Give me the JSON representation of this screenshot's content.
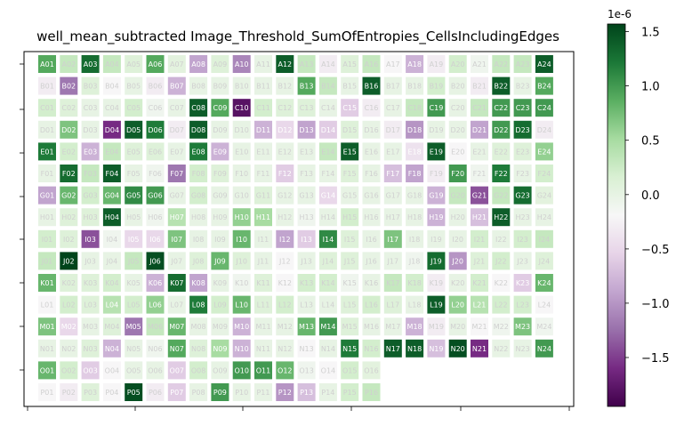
{
  "chart_data": {
    "type": "heatmap",
    "title": "well_mean_subtracted Image_Threshold_SumOfEntropies_CellsIncludingEdges",
    "rows": [
      "A",
      "B",
      "C",
      "D",
      "E",
      "F",
      "G",
      "H",
      "I",
      "J",
      "K",
      "L",
      "M",
      "N",
      "O",
      "P"
    ],
    "columns": [
      "01",
      "02",
      "03",
      "04",
      "05",
      "06",
      "07",
      "08",
      "09",
      "10",
      "11",
      "12",
      "13",
      "14",
      "15",
      "16",
      "17",
      "18",
      "19",
      "20",
      "21",
      "22",
      "23",
      "24"
    ],
    "colorbar": {
      "exponent_label": "1e-6",
      "ticks": [
        1.5,
        1.0,
        0.5,
        0.0,
        -0.5,
        -1.0,
        -1.5
      ],
      "tick_labels": [
        "1.5",
        "1.0",
        "0.5",
        "0.0",
        "−0.5",
        "−1.0",
        "−1.5"
      ],
      "vmin": -1.95,
      "vmax": 1.57,
      "colormap": "PRGn"
    },
    "grid_values": [
      [
        0.9,
        0.3,
        1.3,
        0.3,
        0.1,
        0.9,
        0.05,
        -0.9,
        0.1,
        -1.1,
        0.0,
        1.4,
        0.3,
        -0.3,
        0.1,
        0.3,
        -0.2,
        -0.8,
        -0.3,
        0.2,
        -0.1,
        0.3,
        0.3,
        1.4
      ],
      [
        -0.3,
        -1.2,
        0.1,
        -0.2,
        0.0,
        -0.3,
        -0.8,
        0.0,
        0.0,
        0.0,
        0.0,
        0.0,
        0.9,
        0.3,
        0.0,
        1.4,
        0.0,
        0.0,
        0.2,
        0.0,
        -0.3,
        1.4,
        0.0,
        0.9
      ],
      [
        0.2,
        0.1,
        0.0,
        0.0,
        0.2,
        -0.1,
        0.0,
        1.4,
        0.9,
        -1.8,
        0.2,
        0.1,
        0.1,
        0.0,
        -0.6,
        -0.3,
        0.0,
        0.3,
        1.0,
        0.0,
        0.3,
        1.0,
        1.0,
        1.0
      ],
      [
        0.0,
        0.7,
        0.0,
        -1.6,
        1.4,
        1.2,
        -0.3,
        1.4,
        0.0,
        0.0,
        -0.8,
        -0.5,
        -0.9,
        -0.6,
        0.1,
        0.0,
        -0.3,
        -1.0,
        0.0,
        0.0,
        -0.9,
        1.0,
        1.3,
        -0.3
      ],
      [
        1.2,
        0.2,
        -0.8,
        0.3,
        0.1,
        0.1,
        0.0,
        1.2,
        -0.8,
        0.0,
        0.0,
        0.0,
        0.0,
        0.3,
        1.4,
        0.0,
        0.0,
        -0.4,
        1.4,
        -0.2,
        0.0,
        0.1,
        0.1,
        0.6
      ],
      [
        0.0,
        1.3,
        0.3,
        1.4,
        0.0,
        -0.1,
        -1.2,
        0.2,
        0.1,
        0.0,
        0.0,
        -0.6,
        0.0,
        0.0,
        0.1,
        0.0,
        -0.7,
        -0.9,
        -0.3,
        1.0,
        -0.1,
        1.2,
        0.0,
        0.2
      ],
      [
        -0.9,
        0.8,
        0.2,
        0.8,
        1.1,
        1.0,
        0.0,
        0.2,
        0.0,
        0.0,
        0.1,
        0.0,
        0.0,
        -0.5,
        0.0,
        0.0,
        0.0,
        0.0,
        -0.8,
        0.3,
        -1.4,
        0.3,
        1.3,
        0.05
      ],
      [
        0.0,
        0.1,
        0.1,
        1.4,
        0.0,
        -0.1,
        0.4,
        0.0,
        0.0,
        0.6,
        0.5,
        0.0,
        -0.1,
        0.0,
        0.2,
        0.0,
        0.0,
        0.0,
        -0.8,
        0.0,
        -0.7,
        1.4,
        0.0,
        0.0
      ],
      [
        0.2,
        0.1,
        -1.4,
        -0.1,
        -0.5,
        -0.5,
        0.7,
        0.0,
        0.0,
        0.8,
        0.0,
        -0.9,
        -0.6,
        1.1,
        0.1,
        0.0,
        0.7,
        0.0,
        0.0,
        0.0,
        0.2,
        0.0,
        0.2,
        0.3
      ],
      [
        0.3,
        1.6,
        0.0,
        0.0,
        0.3,
        1.5,
        0.0,
        0.1,
        0.8,
        0.1,
        0.0,
        -0.2,
        0.0,
        0.1,
        0.1,
        0.0,
        0.0,
        -0.1,
        1.3,
        -1.0,
        0.1,
        0.2,
        0.0,
        0.1
      ],
      [
        0.8,
        0.1,
        0.1,
        0.2,
        0.0,
        -0.8,
        1.3,
        -0.9,
        0.0,
        -0.1,
        0.1,
        -0.2,
        0.2,
        0.2,
        -0.1,
        0.0,
        0.3,
        0.2,
        -0.3,
        0.0,
        0.2,
        -0.2,
        -0.6,
        0.8
      ],
      [
        -0.2,
        0.2,
        0.1,
        0.4,
        0.2,
        0.6,
        0.0,
        1.2,
        0.2,
        0.8,
        0.1,
        0.2,
        0.0,
        0.0,
        0.1,
        0.2,
        0.1,
        0.0,
        1.4,
        0.6,
        0.4,
        0.2,
        0.2,
        -0.2
      ],
      [
        0.7,
        -0.5,
        0.0,
        0.1,
        -1.2,
        0.3,
        0.8,
        0.0,
        0.0,
        -0.8,
        0.0,
        0.0,
        0.8,
        1.0,
        0.1,
        0.0,
        0.0,
        -0.8,
        -0.3,
        0.0,
        -0.2,
        -0.1,
        0.7,
        -0.1
      ],
      [
        0.0,
        0.0,
        0.1,
        -0.8,
        0.0,
        -0.1,
        0.9,
        0.1,
        0.5,
        -0.8,
        0.0,
        0.0,
        -0.2,
        0.0,
        1.2,
        0.2,
        1.4,
        1.4,
        -0.7,
        1.5,
        -1.6,
        0.0,
        0.0,
        1.0
      ],
      [
        0.8,
        0.2,
        -0.6,
        -0.2,
        0.0,
        0.0,
        -0.6,
        0.2,
        0.0,
        1.0,
        1.0,
        0.8,
        -0.1,
        -0.2,
        0.2,
        0.05,
        null,
        null,
        null,
        null,
        null,
        null,
        null,
        null
      ],
      [
        -0.2,
        -0.3,
        0.1,
        -0.2,
        1.5,
        -0.3,
        -0.6,
        0.0,
        1.0,
        0.0,
        0.0,
        -1.0,
        -0.7,
        0.0,
        0.2,
        0.3,
        null,
        null,
        null,
        null,
        null,
        null,
        null,
        null
      ]
    ]
  }
}
